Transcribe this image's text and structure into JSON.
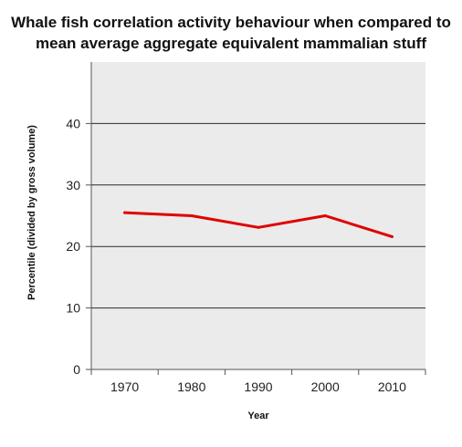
{
  "chart_data": {
    "type": "line",
    "title_lines": [
      "Whale fish correlation activity behaviour when compared to",
      "mean average aggregate equivalent mammalian stuff"
    ],
    "xlabel": "Year",
    "ylabel": "Percentile (divided by gross volume)",
    "categories": [
      "1970",
      "1980",
      "1990",
      "2000",
      "2010"
    ],
    "series": [
      {
        "values": [
          25.5,
          25,
          23.1,
          25,
          21.6
        ]
      }
    ],
    "ylim": [
      0,
      50
    ],
    "yticks": [
      0,
      10,
      20,
      30,
      40
    ],
    "grid": true,
    "legend": "none",
    "colors": {
      "line": "#e00000",
      "plot_background": "#ebebeb",
      "grid": "#2a2a2a",
      "axis": "#555555"
    }
  }
}
